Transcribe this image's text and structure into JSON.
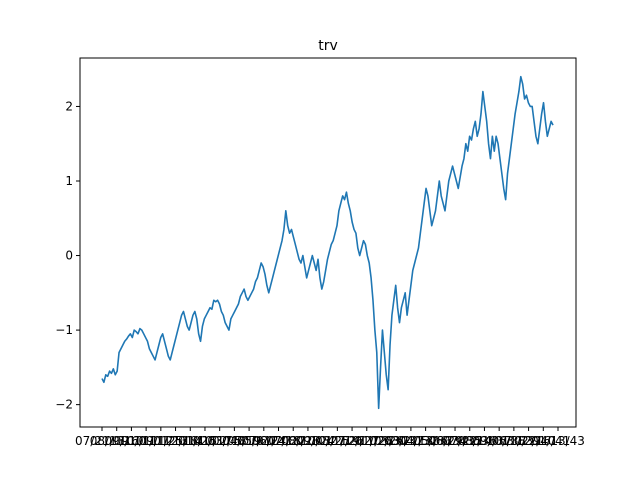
{
  "chart_data": {
    "type": "line",
    "title": "trv",
    "xlabel": "",
    "ylabel": "",
    "ylim": [
      -2.3,
      2.65
    ],
    "yticks": [
      -2,
      -1,
      0,
      1,
      2
    ],
    "ytick_labels": [
      "−2",
      "−1",
      "0",
      "1",
      "2"
    ],
    "xticks": [
      "07/21/09",
      "08/13/10",
      "09/16/11",
      "10/09/12",
      "11/01/13",
      "11/25/14",
      "12/18/15",
      "01/10/17",
      "02/02/18",
      "03/05/19",
      "04/07/20",
      "05/01/21",
      "06/24/22",
      "07/18/23",
      "08/10/24",
      "09/03/25",
      "10/27/26",
      "11/19/27",
      "12/11/28",
      "01/03/30",
      "02/26/31",
      "03/21/32",
      "04/13/33",
      "05/06/34",
      "06/29/35",
      "07/22/36",
      "08/14/37",
      "09/06/38",
      "10/30/39",
      "11/22/40",
      "12/16/41",
      "01/13/43"
    ],
    "grid": false,
    "legend": "none",
    "series_color": "#1f77b4",
    "series": [
      {
        "values": [
          -1.65,
          -1.7,
          -1.6,
          -1.62,
          -1.55,
          -1.58,
          -1.52,
          -1.6,
          -1.55,
          -1.3,
          -1.25,
          -1.2,
          -1.15,
          -1.12,
          -1.08,
          -1.05,
          -1.1,
          -1.0,
          -1.02,
          -1.05,
          -0.98,
          -1.0,
          -1.05,
          -1.1,
          -1.15,
          -1.25,
          -1.3,
          -1.35,
          -1.4,
          -1.3,
          -1.2,
          -1.1,
          -1.05,
          -1.15,
          -1.25,
          -1.35,
          -1.4,
          -1.3,
          -1.2,
          -1.1,
          -1.0,
          -0.9,
          -0.8,
          -0.75,
          -0.85,
          -0.95,
          -1.0,
          -0.9,
          -0.8,
          -0.75,
          -0.85,
          -1.05,
          -1.15,
          -0.95,
          -0.85,
          -0.8,
          -0.75,
          -0.7,
          -0.72,
          -0.6,
          -0.62,
          -0.6,
          -0.65,
          -0.75,
          -0.8,
          -0.9,
          -0.95,
          -1.0,
          -0.85,
          -0.8,
          -0.75,
          -0.7,
          -0.65,
          -0.55,
          -0.5,
          -0.45,
          -0.55,
          -0.6,
          -0.55,
          -0.5,
          -0.45,
          -0.35,
          -0.3,
          -0.2,
          -0.1,
          -0.15,
          -0.25,
          -0.4,
          -0.5,
          -0.4,
          -0.3,
          -0.2,
          -0.1,
          0.0,
          0.1,
          0.2,
          0.35,
          0.6,
          0.4,
          0.3,
          0.35,
          0.25,
          0.15,
          0.05,
          -0.05,
          -0.1,
          0.0,
          -0.15,
          -0.3,
          -0.2,
          -0.1,
          0.0,
          -0.1,
          -0.2,
          -0.05,
          -0.3,
          -0.45,
          -0.35,
          -0.2,
          -0.05,
          0.05,
          0.15,
          0.2,
          0.3,
          0.4,
          0.6,
          0.7,
          0.8,
          0.75,
          0.85,
          0.7,
          0.6,
          0.45,
          0.35,
          0.3,
          0.1,
          0.0,
          0.1,
          0.2,
          0.15,
          0.0,
          -0.1,
          -0.3,
          -0.6,
          -1.0,
          -1.3,
          -2.05,
          -1.5,
          -1.0,
          -1.3,
          -1.6,
          -1.8,
          -1.2,
          -0.8,
          -0.6,
          -0.4,
          -0.7,
          -0.9,
          -0.7,
          -0.6,
          -0.5,
          -0.8,
          -0.6,
          -0.4,
          -0.2,
          -0.1,
          0.0,
          0.1,
          0.3,
          0.5,
          0.7,
          0.9,
          0.8,
          0.6,
          0.4,
          0.5,
          0.6,
          0.8,
          1.0,
          0.8,
          0.7,
          0.6,
          0.8,
          1.0,
          1.1,
          1.2,
          1.1,
          1.0,
          0.9,
          1.05,
          1.2,
          1.3,
          1.5,
          1.4,
          1.6,
          1.55,
          1.7,
          1.8,
          1.6,
          1.7,
          1.9,
          2.2,
          2.0,
          1.8,
          1.5,
          1.3,
          1.6,
          1.4,
          1.6,
          1.5,
          1.3,
          1.1,
          0.9,
          0.75,
          1.1,
          1.3,
          1.5,
          1.7,
          1.9,
          2.05,
          2.2,
          2.4,
          2.3,
          2.1,
          2.15,
          2.05,
          2.0,
          2.0,
          1.8,
          1.6,
          1.5,
          1.7,
          1.9,
          2.05,
          1.8,
          1.6,
          1.7,
          1.8,
          1.75
        ]
      }
    ]
  }
}
